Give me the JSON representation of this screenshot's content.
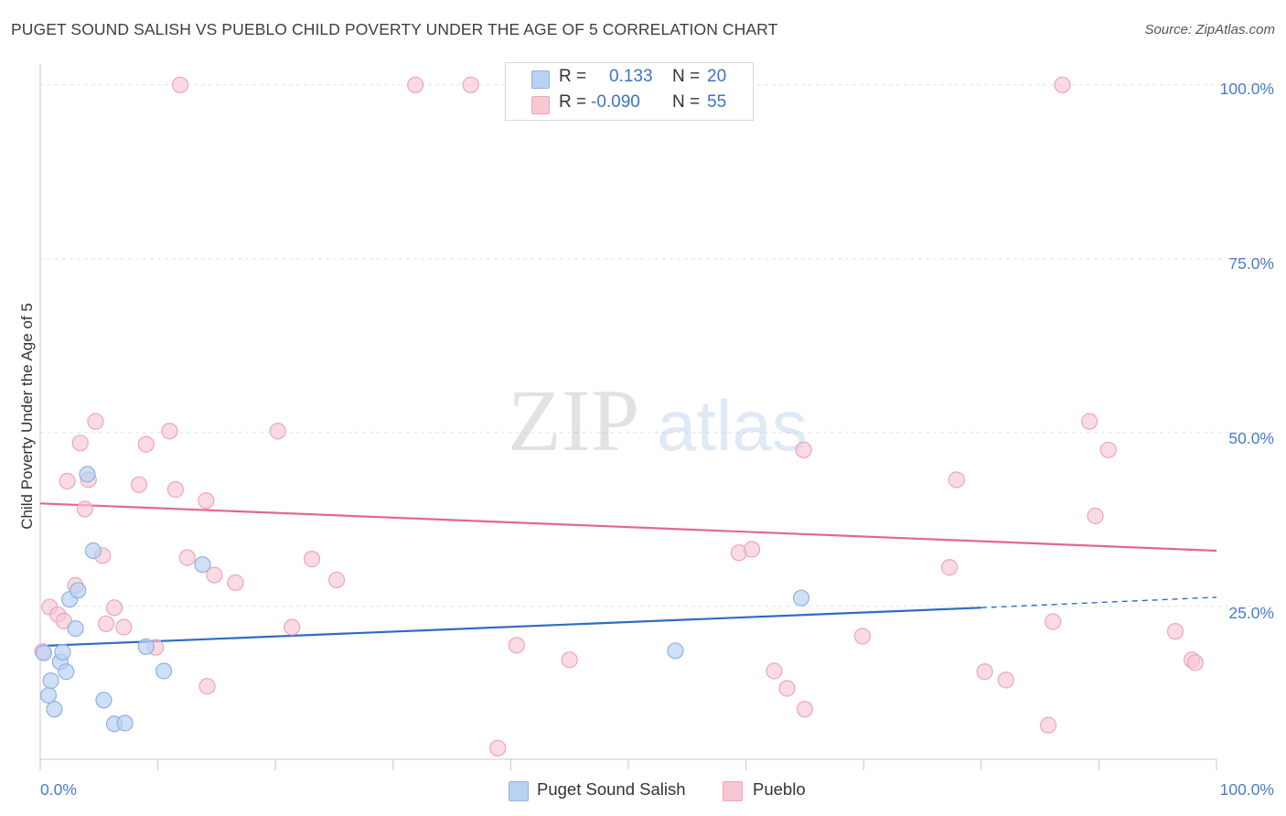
{
  "header": {
    "title": "PUGET SOUND SALISH VS PUEBLO CHILD POVERTY UNDER THE AGE OF 5 CORRELATION CHART",
    "source": "Source: ZipAtlas.com"
  },
  "watermark": {
    "zip": "ZIP",
    "atlas": "atlas"
  },
  "legend": {
    "rows": [
      {
        "r_label": "R =",
        "r_value": "0.133",
        "n_label": "N =",
        "n_value": "20",
        "color": "#a9c6f0"
      },
      {
        "r_label": "R =",
        "r_value": "-0.090",
        "n_label": "N =",
        "n_value": "55",
        "color": "#f6bccb"
      }
    ]
  },
  "colors": {
    "salish_fill": "#b9d1f2",
    "salish_stroke": "#8fb2e4",
    "salish_line": "#2f6cc7",
    "pueblo_fill": "#f8c7d4",
    "pueblo_stroke": "#eea5ba",
    "pueblo_line": "#e2678f",
    "axis_text": "#4a7cc9",
    "grid": "#e2e2e2"
  },
  "chart_data": {
    "type": "scatter",
    "title": "PUGET SOUND SALISH VS PUEBLO CHILD POVERTY UNDER THE AGE OF 5 CORRELATION CHART",
    "xlabel": "",
    "ylabel": "Child Poverty Under the Age of 5",
    "xlim": [
      0,
      100
    ],
    "ylim": [
      3,
      103
    ],
    "x_tick_labels": [
      "0.0%",
      "100.0%"
    ],
    "y_ticks": [
      25,
      50,
      75,
      100
    ],
    "y_tick_labels": [
      "25.0%",
      "50.0%",
      "75.0%",
      "100.0%"
    ],
    "grid": true,
    "legend_position": "bottom",
    "series": [
      {
        "name": "Puget Sound Salish",
        "r": 0.133,
        "n": 20,
        "points": [
          [
            0.3,
            18.3
          ],
          [
            0.7,
            12.2
          ],
          [
            0.9,
            14.3
          ],
          [
            1.2,
            10.2
          ],
          [
            1.7,
            17.0
          ],
          [
            1.9,
            18.4
          ],
          [
            2.2,
            15.6
          ],
          [
            2.5,
            26.0
          ],
          [
            3.0,
            21.8
          ],
          [
            3.2,
            27.3
          ],
          [
            4.0,
            44.0
          ],
          [
            4.5,
            33.0
          ],
          [
            5.4,
            11.5
          ],
          [
            6.3,
            8.1
          ],
          [
            7.2,
            8.2
          ],
          [
            9.0,
            19.2
          ],
          [
            10.5,
            15.7
          ],
          [
            13.8,
            31.0
          ],
          [
            54.0,
            18.6
          ],
          [
            64.7,
            26.2
          ]
        ],
        "trend": {
          "x": [
            0,
            80
          ],
          "y": [
            19.3,
            24.8
          ],
          "dashed_to": [
            100,
            26.3
          ]
        }
      },
      {
        "name": "Pueblo",
        "r": -0.09,
        "n": 55,
        "points": [
          [
            0.2,
            18.5
          ],
          [
            0.8,
            24.9
          ],
          [
            1.5,
            23.8
          ],
          [
            2.0,
            22.9
          ],
          [
            2.3,
            43.0
          ],
          [
            3.0,
            28.0
          ],
          [
            3.4,
            48.5
          ],
          [
            3.8,
            39.0
          ],
          [
            4.1,
            43.2
          ],
          [
            4.7,
            51.6
          ],
          [
            5.3,
            32.3
          ],
          [
            5.6,
            22.5
          ],
          [
            6.3,
            24.8
          ],
          [
            7.1,
            22.0
          ],
          [
            8.4,
            42.5
          ],
          [
            9.0,
            48.3
          ],
          [
            9.8,
            19.1
          ],
          [
            11.0,
            50.2
          ],
          [
            11.5,
            41.8
          ],
          [
            11.9,
            100.0
          ],
          [
            12.5,
            32.0
          ],
          [
            14.1,
            40.2
          ],
          [
            14.2,
            13.5
          ],
          [
            14.8,
            29.5
          ],
          [
            16.6,
            28.4
          ],
          [
            20.2,
            50.2
          ],
          [
            21.4,
            22.0
          ],
          [
            23.1,
            31.8
          ],
          [
            25.2,
            28.8
          ],
          [
            31.9,
            100.0
          ],
          [
            36.6,
            100.0
          ],
          [
            38.9,
            4.6
          ],
          [
            40.5,
            19.4
          ],
          [
            45.0,
            17.3
          ],
          [
            50.4,
            100.0
          ],
          [
            59.4,
            32.7
          ],
          [
            60.5,
            33.2
          ],
          [
            62.4,
            15.7
          ],
          [
            63.5,
            13.2
          ],
          [
            64.9,
            47.5
          ],
          [
            65.0,
            10.2
          ],
          [
            69.9,
            20.7
          ],
          [
            77.3,
            30.6
          ],
          [
            77.9,
            43.2
          ],
          [
            80.3,
            15.6
          ],
          [
            82.1,
            14.4
          ],
          [
            85.7,
            7.9
          ],
          [
            86.1,
            22.8
          ],
          [
            86.9,
            100.0
          ],
          [
            89.2,
            51.6
          ],
          [
            89.7,
            38.0
          ],
          [
            90.8,
            47.5
          ],
          [
            96.5,
            21.4
          ],
          [
            97.9,
            17.3
          ],
          [
            98.2,
            16.9
          ]
        ],
        "trend": {
          "x": [
            0,
            100
          ],
          "y": [
            39.8,
            33.0
          ]
        }
      }
    ]
  },
  "bottom_legend": {
    "items": [
      {
        "label": "Puget Sound Salish"
      },
      {
        "label": "Pueblo"
      }
    ]
  }
}
